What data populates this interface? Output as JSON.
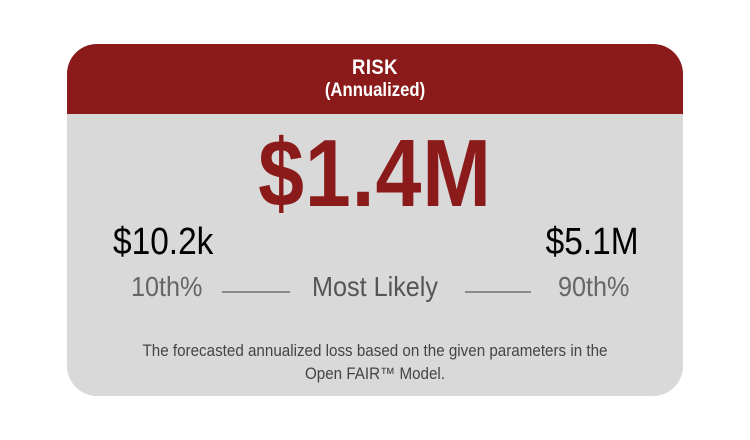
{
  "theme": {
    "accent_color": "#8b1a1a",
    "card_background": "#d9d9d9",
    "header_text_color": "#ffffff"
  },
  "card": {
    "title": "RISK",
    "subtitle": "(Annualized)",
    "most_likely_value": "$1.4M",
    "low": {
      "value": "$10.2k",
      "label": "10th%"
    },
    "high": {
      "value": "$5.1M",
      "label": "90th%"
    },
    "most_likely_label": "Most Likely",
    "description": "The forecasted annualized loss based on the given parameters in the Open FAIR™ Model."
  }
}
